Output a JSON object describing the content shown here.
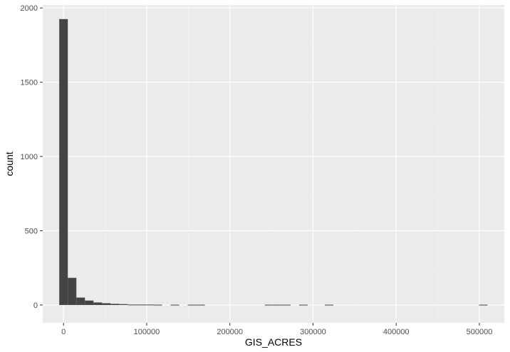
{
  "chart_data": {
    "type": "bar",
    "subtype": "histogram",
    "xlabel": "GIS_ACRES",
    "ylabel": "count",
    "xlim": [
      -25000,
      530000
    ],
    "ylim": [
      -120,
      2020
    ],
    "x_ticks": [
      0,
      100000,
      200000,
      300000,
      400000,
      500000
    ],
    "x_tick_labels": [
      "0",
      "100000",
      "200000",
      "300000",
      "400000",
      "500000"
    ],
    "y_ticks": [
      0,
      500,
      1000,
      1500,
      2000
    ],
    "y_tick_labels": [
      "0",
      "500",
      "1000",
      "1500",
      "2000"
    ],
    "bin_width": 10300,
    "bins": [
      {
        "x0": -5150,
        "x1": 5150,
        "count": 1925
      },
      {
        "x0": 5150,
        "x1": 15450,
        "count": 183
      },
      {
        "x0": 15450,
        "x1": 25750,
        "count": 50
      },
      {
        "x0": 25750,
        "x1": 36050,
        "count": 30
      },
      {
        "x0": 36050,
        "x1": 46350,
        "count": 17
      },
      {
        "x0": 46350,
        "x1": 56650,
        "count": 12
      },
      {
        "x0": 56650,
        "x1": 66950,
        "count": 8
      },
      {
        "x0": 66950,
        "x1": 77250,
        "count": 6
      },
      {
        "x0": 77250,
        "x1": 87550,
        "count": 3
      },
      {
        "x0": 87550,
        "x1": 97850,
        "count": 3
      },
      {
        "x0": 97850,
        "x1": 108150,
        "count": 3
      },
      {
        "x0": 108150,
        "x1": 118450,
        "count": 2
      },
      {
        "x0": 128750,
        "x1": 139050,
        "count": 2
      },
      {
        "x0": 149350,
        "x1": 159650,
        "count": 2
      },
      {
        "x0": 159650,
        "x1": 169950,
        "count": 2
      },
      {
        "x0": 242050,
        "x1": 252350,
        "count": 2
      },
      {
        "x0": 252350,
        "x1": 262650,
        "count": 2
      },
      {
        "x0": 262650,
        "x1": 272950,
        "count": 2
      },
      {
        "x0": 283250,
        "x1": 293550,
        "count": 2
      },
      {
        "x0": 314150,
        "x1": 324450,
        "count": 2
      },
      {
        "x0": 499550,
        "x1": 509850,
        "count": 2
      }
    ],
    "colors": {
      "panel": "#ebebeb",
      "grid_major": "#ffffff",
      "grid_minor": "#f4f4f4",
      "bar": "#444444",
      "tick": "#333333"
    },
    "legend": "none",
    "grid": true
  }
}
